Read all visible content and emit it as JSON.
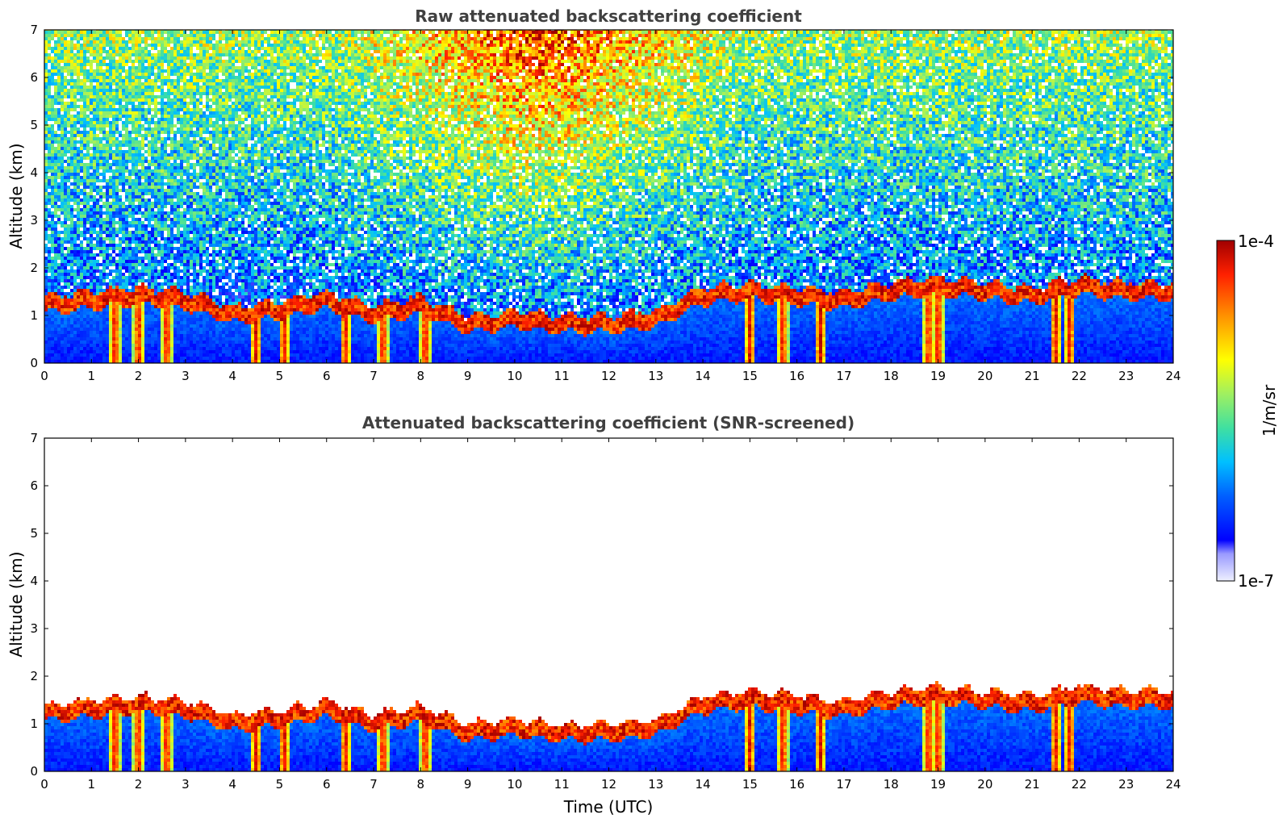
{
  "chart_data": [
    {
      "type": "heatmap",
      "title": "Raw attenuated backscattering coefficient",
      "xlabel": "",
      "ylabel": "Altitude (km)",
      "xlim": [
        0,
        24
      ],
      "ylim": [
        0,
        7
      ],
      "x_ticks": [
        "0",
        "1",
        "2",
        "3",
        "4",
        "5",
        "6",
        "7",
        "8",
        "9",
        "10",
        "11",
        "12",
        "13",
        "14",
        "15",
        "16",
        "17",
        "18",
        "19",
        "20",
        "21",
        "22",
        "23",
        "24"
      ],
      "y_ticks": [
        "0",
        "1",
        "2",
        "3",
        "4",
        "5",
        "6",
        "7"
      ],
      "grid": false,
      "content": "noisy backscatter field; high values aloft 6-14 UTC; aerosol layer below about 1 km; cloud layer near 1-2 km",
      "cloud_base_km_by_hour": [
        1.2,
        1.3,
        1.4,
        1.3,
        1.0,
        1.1,
        1.3,
        1.0,
        1.2,
        0.8,
        0.9,
        0.8,
        0.8,
        0.9,
        1.4,
        1.5,
        1.4,
        1.3,
        1.5,
        1.6,
        1.5,
        1.4,
        1.6,
        1.5,
        1.5
      ],
      "precip_shafts_utc": [
        1.5,
        2.0,
        2.6,
        4.5,
        5.1,
        6.4,
        7.2,
        8.1,
        15.0,
        15.7,
        16.5,
        18.8,
        19.0,
        21.5,
        21.8
      ]
    },
    {
      "type": "heatmap",
      "title": "Attenuated backscattering coefficient (SNR-screened)",
      "xlabel": "Time (UTC)",
      "ylabel": "Altitude (km)",
      "xlim": [
        0,
        24
      ],
      "ylim": [
        0,
        7
      ],
      "x_ticks": [
        "0",
        "1",
        "2",
        "3",
        "4",
        "5",
        "6",
        "7",
        "8",
        "9",
        "10",
        "11",
        "12",
        "13",
        "14",
        "15",
        "16",
        "17",
        "18",
        "19",
        "20",
        "21",
        "22",
        "23",
        "24"
      ],
      "y_ticks": [
        "0",
        "1",
        "2",
        "3",
        "4",
        "5",
        "6",
        "7"
      ],
      "grid": false,
      "content": "same field with low-SNR pixels removed (white); only boundary layer and clouds remain"
    }
  ],
  "colorbar": {
    "label": "1/m/sr",
    "max_label": "1e-4",
    "min_label": "1e-7",
    "colormap": [
      "#eef0ff",
      "#9999ff",
      "#0000ff",
      "#0060ff",
      "#00c0ff",
      "#40e0a0",
      "#a0f060",
      "#ffff00",
      "#ff9000",
      "#ff2000",
      "#a00000"
    ]
  }
}
